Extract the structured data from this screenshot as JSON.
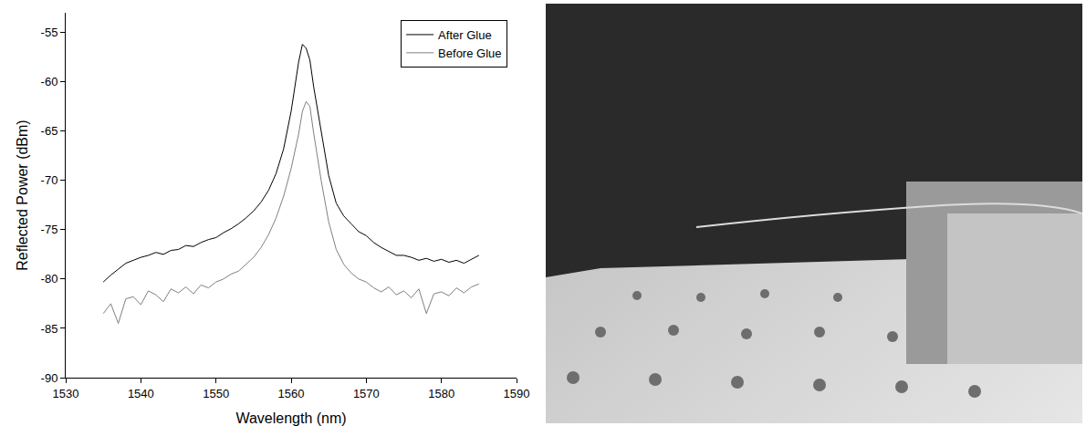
{
  "chart_data": {
    "type": "line",
    "x_label": "Wavelength (nm)",
    "y_label": "Reflected Power (dBm)",
    "xlim": [
      1530,
      1590
    ],
    "xticks": [
      1530,
      1540,
      1550,
      1560,
      1570,
      1580,
      1590
    ],
    "ylim": [
      -90,
      -53
    ],
    "yticks": [
      -90,
      -85,
      -80,
      -75,
      -70,
      -65,
      -60,
      -55
    ],
    "grid": false,
    "legend": "top-right",
    "series": [
      {
        "name": "After Glue",
        "color": "#000000",
        "line_style": "solid",
        "x": [
          1535,
          1536,
          1537,
          1538,
          1539,
          1540,
          1541,
          1542,
          1543,
          1544,
          1545,
          1546,
          1547,
          1548,
          1549,
          1550,
          1551,
          1552,
          1553,
          1554,
          1555,
          1556,
          1557,
          1558,
          1559,
          1560,
          1561,
          1561.5,
          1562,
          1562.5,
          1563,
          1564,
          1565,
          1566,
          1567,
          1568,
          1569,
          1570,
          1571,
          1572,
          1573,
          1574,
          1575,
          1576,
          1577,
          1578,
          1579,
          1580,
          1581,
          1582,
          1583,
          1584,
          1585
        ],
        "values": [
          -80.3,
          -79.6,
          -79.0,
          -78.4,
          -78.1,
          -77.8,
          -77.6,
          -77.3,
          -77.5,
          -77.1,
          -77.0,
          -76.6,
          -76.7,
          -76.3,
          -76.0,
          -75.8,
          -75.3,
          -74.9,
          -74.4,
          -73.8,
          -73.1,
          -72.2,
          -71.0,
          -69.3,
          -66.8,
          -63.0,
          -58.0,
          -56.2,
          -56.6,
          -57.8,
          -60.5,
          -64.8,
          -69.5,
          -72.3,
          -73.6,
          -74.4,
          -75.2,
          -75.6,
          -76.3,
          -76.8,
          -77.2,
          -77.6,
          -77.6,
          -77.8,
          -78.1,
          -77.9,
          -78.2,
          -78.0,
          -78.3,
          -78.1,
          -78.4,
          -78.0,
          -77.6
        ]
      },
      {
        "name": "Before Glue",
        "color": "#808080",
        "line_style": "solid",
        "x": [
          1535,
          1536,
          1537,
          1538,
          1539,
          1540,
          1541,
          1542,
          1543,
          1544,
          1545,
          1546,
          1547,
          1548,
          1549,
          1550,
          1551,
          1552,
          1553,
          1554,
          1555,
          1556,
          1557,
          1558,
          1559,
          1560,
          1561,
          1561.5,
          1562,
          1562.5,
          1563,
          1564,
          1565,
          1566,
          1567,
          1568,
          1569,
          1570,
          1571,
          1572,
          1573,
          1574,
          1575,
          1576,
          1577,
          1578,
          1579,
          1580,
          1581,
          1582,
          1583,
          1584,
          1585
        ],
        "values": [
          -83.5,
          -82.5,
          -84.5,
          -82.0,
          -81.8,
          -82.6,
          -81.2,
          -81.6,
          -82.3,
          -81.0,
          -81.4,
          -80.8,
          -81.5,
          -80.6,
          -80.9,
          -80.3,
          -80.0,
          -79.5,
          -79.2,
          -78.5,
          -77.8,
          -76.8,
          -75.5,
          -73.8,
          -71.6,
          -68.8,
          -65.3,
          -63.0,
          -62.0,
          -62.5,
          -65.2,
          -70.0,
          -74.2,
          -77.0,
          -78.5,
          -79.4,
          -80.0,
          -80.3,
          -80.9,
          -81.3,
          -80.8,
          -81.6,
          -81.2,
          -81.9,
          -81.0,
          -83.5,
          -81.5,
          -81.3,
          -81.7,
          -80.9,
          -81.4,
          -80.8,
          -80.5
        ]
      }
    ]
  }
}
